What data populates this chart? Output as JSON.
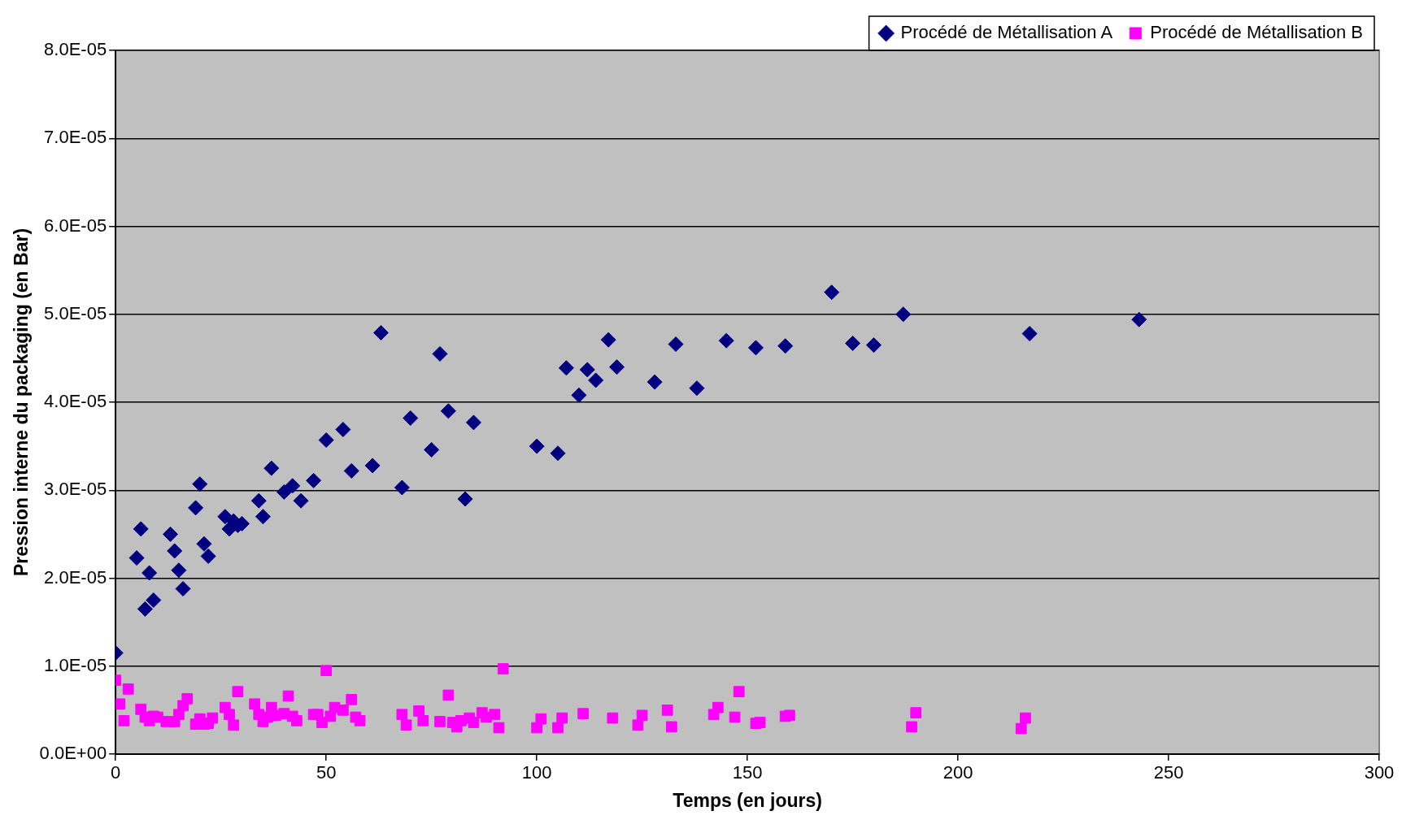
{
  "chart_data": {
    "type": "scatter",
    "xlabel": "Temps (en jours)",
    "ylabel": "Pression interne du packaging (en Bar)",
    "xlim": [
      0,
      300
    ],
    "xticks": [
      0,
      50,
      100,
      150,
      200,
      250,
      300
    ],
    "ylim": [
      0,
      8e-05
    ],
    "yticks": [
      {
        "value": 0,
        "label": "0.0E+00"
      },
      {
        "value": 1e-05,
        "label": "1.0E-05"
      },
      {
        "value": 2e-05,
        "label": "2.0E-05"
      },
      {
        "value": 3e-05,
        "label": "3.0E-05"
      },
      {
        "value": 4e-05,
        "label": "4.0E-05"
      },
      {
        "value": 5e-05,
        "label": "5.0E-05"
      },
      {
        "value": 6e-05,
        "label": "6.0E-05"
      },
      {
        "value": 7e-05,
        "label": "7.0E-05"
      },
      {
        "value": 8e-05,
        "label": "8.0E-05"
      }
    ],
    "grid": "y",
    "legend": "top right",
    "series": [
      {
        "name": "Procédé de Métallisation A",
        "color": "#000080",
        "marker": "diamond",
        "x": [
          0,
          5,
          6,
          7,
          8,
          9,
          13,
          14,
          15,
          16,
          19,
          20,
          21,
          22,
          26,
          27,
          28,
          29,
          30,
          34,
          35,
          37,
          40,
          42,
          44,
          47,
          50,
          54,
          56,
          61,
          63,
          68,
          70,
          75,
          77,
          79,
          83,
          85,
          100,
          105,
          107,
          110,
          112,
          114,
          117,
          119,
          128,
          133,
          138,
          145,
          152,
          159,
          170,
          175,
          180,
          187,
          217,
          243
        ],
        "values": [
          1.15e-05,
          2.23e-05,
          2.56e-05,
          1.65e-05,
          2.06e-05,
          1.75e-05,
          2.5e-05,
          2.31e-05,
          2.09e-05,
          1.88e-05,
          2.8e-05,
          3.07e-05,
          2.39e-05,
          2.25e-05,
          2.7e-05,
          2.56e-05,
          2.65e-05,
          2.6e-05,
          2.62e-05,
          2.88e-05,
          2.7e-05,
          3.25e-05,
          2.98e-05,
          3.05e-05,
          2.88e-05,
          3.11e-05,
          3.57e-05,
          3.69e-05,
          3.22e-05,
          3.28e-05,
          4.79e-05,
          3.03e-05,
          3.82e-05,
          3.46e-05,
          4.55e-05,
          3.9e-05,
          2.9e-05,
          3.77e-05,
          3.5e-05,
          3.42e-05,
          4.39e-05,
          4.08e-05,
          4.37e-05,
          4.25e-05,
          4.71e-05,
          4.4e-05,
          4.23e-05,
          4.66e-05,
          4.16e-05,
          4.7e-05,
          4.62e-05,
          4.64e-05,
          5.25e-05,
          4.67e-05,
          4.65e-05,
          5e-05,
          4.78e-05,
          4.94e-05
        ]
      },
      {
        "name": "Procédé de Métallisation B",
        "color": "#ff00ff",
        "marker": "square",
        "x": [
          0,
          1,
          2,
          3,
          6,
          7,
          8,
          9,
          10,
          12,
          14,
          15,
          16,
          17,
          19,
          20,
          21,
          22,
          23,
          26,
          27,
          28,
          29,
          33,
          34,
          35,
          36,
          37,
          38,
          40,
          41,
          42,
          43,
          47,
          48,
          49,
          50,
          51,
          52,
          54,
          56,
          57,
          58,
          68,
          69,
          72,
          73,
          77,
          79,
          80,
          81,
          82,
          84,
          85,
          87,
          88,
          90,
          91,
          92,
          100,
          101,
          105,
          106,
          111,
          118,
          124,
          125,
          131,
          132,
          142,
          143,
          147,
          148,
          152,
          153,
          159,
          160,
          189,
          190,
          215,
          216
        ],
        "values": [
          8.4e-06,
          5.7e-06,
          3.8e-06,
          7.4e-06,
          5.1e-06,
          4.2e-06,
          3.8e-06,
          4.3e-06,
          4.2e-06,
          3.7e-06,
          3.7e-06,
          4.5e-06,
          5.5e-06,
          6.3e-06,
          3.4e-06,
          4e-06,
          3.4e-06,
          3.5e-06,
          4.1e-06,
          5.3e-06,
          4.5e-06,
          3.3e-06,
          7.1e-06,
          5.7e-06,
          4.5e-06,
          3.7e-06,
          4.2e-06,
          5.3e-06,
          4.4e-06,
          4.6e-06,
          6.6e-06,
          4.3e-06,
          3.8e-06,
          4.5e-06,
          4.5e-06,
          3.6e-06,
          9.5e-06,
          4.3e-06,
          5.3e-06,
          5e-06,
          6.2e-06,
          4.2e-06,
          3.8e-06,
          4.5e-06,
          3.3e-06,
          4.9e-06,
          3.8e-06,
          3.7e-06,
          6.7e-06,
          3.6e-06,
          3.1e-06,
          3.8e-06,
          4.1e-06,
          3.6e-06,
          4.7e-06,
          4.2e-06,
          4.5e-06,
          3e-06,
          9.7e-06,
          3e-06,
          4e-06,
          3e-06,
          4.1e-06,
          4.6e-06,
          4.1e-06,
          3.3e-06,
          4.4e-06,
          5e-06,
          3.1e-06,
          4.5e-06,
          5.3e-06,
          4.2e-06,
          7.1e-06,
          3.5e-06,
          3.6e-06,
          4.3e-06,
          4.4e-06,
          3.1e-06,
          4.7e-06,
          2.9e-06,
          4.1e-06
        ]
      }
    ]
  }
}
